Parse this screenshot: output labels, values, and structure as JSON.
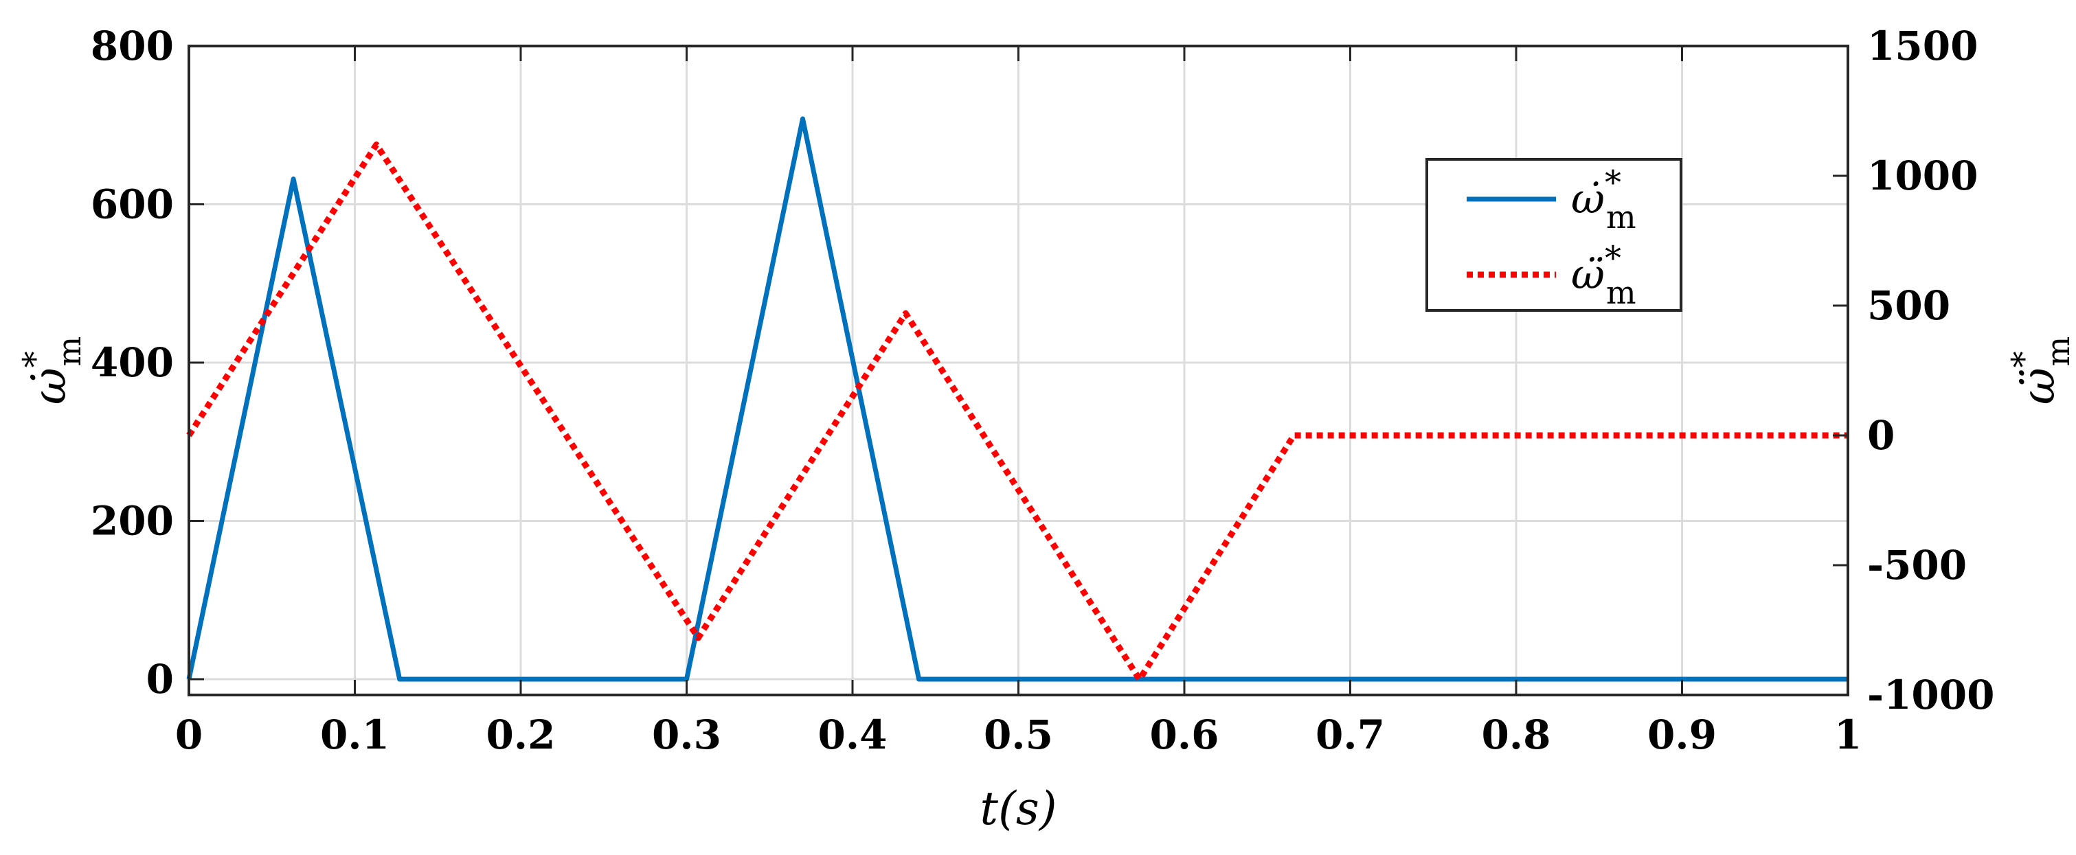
{
  "chart_data": {
    "type": "line",
    "title": "",
    "xlabel": "t(s)",
    "ylabel_left": "ω̇*m",
    "ylabel_right": "ω̈*m",
    "xlim": [
      0,
      1
    ],
    "ylim_left": [
      -20,
      800
    ],
    "ylim_right": [
      -1000,
      1500
    ],
    "x_ticks": [
      "0",
      "0.1",
      "0.2",
      "0.3",
      "0.4",
      "0.5",
      "0.6",
      "0.7",
      "0.8",
      "0.9",
      "1"
    ],
    "y_left_ticks": [
      "0",
      "200",
      "400",
      "600",
      "800"
    ],
    "y_right_ticks": [
      "-1000",
      "-500",
      "0",
      "500",
      "1000",
      "1500"
    ],
    "grid": true,
    "legend_position": "top-right",
    "series": [
      {
        "name": "ω̇*m",
        "axis": "left",
        "color": "#0072BD",
        "style": "solid",
        "x": [
          0,
          0.063,
          0.127,
          0.3,
          0.37,
          0.44,
          1.0
        ],
        "y": [
          0,
          632,
          0,
          0,
          708,
          0,
          0
        ]
      },
      {
        "name": "ω̈*m",
        "axis": "right",
        "color": "#FF0000",
        "style": "dotted",
        "x": [
          0,
          0.113,
          0.307,
          0.432,
          0.573,
          0.666,
          1.0
        ],
        "y": [
          0,
          1120,
          -780,
          470,
          -940,
          0,
          0
        ]
      }
    ]
  }
}
